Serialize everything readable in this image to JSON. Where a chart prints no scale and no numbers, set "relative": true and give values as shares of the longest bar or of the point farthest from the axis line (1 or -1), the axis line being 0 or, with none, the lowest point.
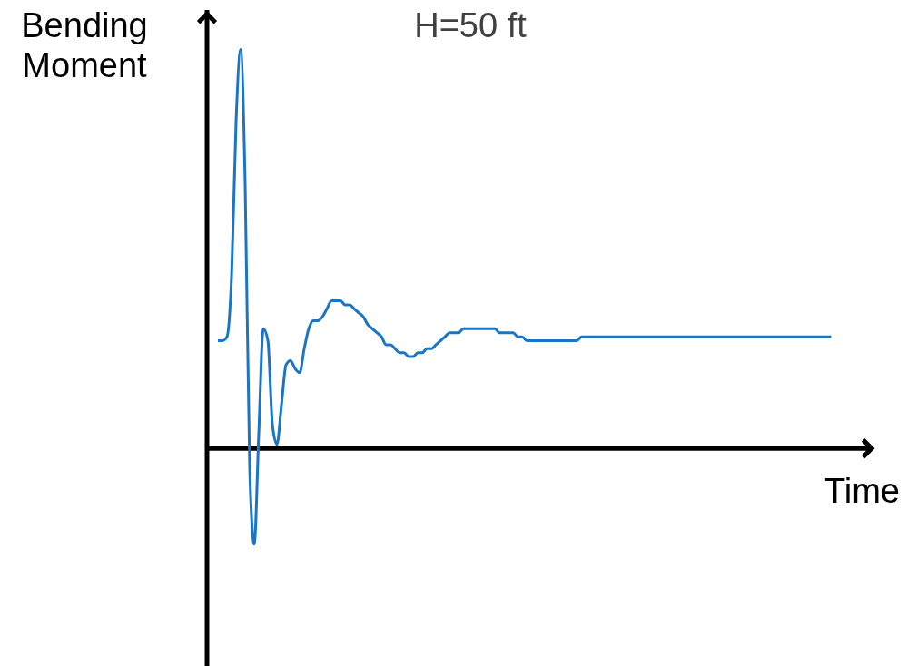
{
  "chart_data": {
    "type": "line",
    "title": "H=50 ft",
    "xlabel": "Time",
    "ylabel": "Bending Moment",
    "relative": true,
    "categories": [
      null,
      null,
      null,
      null,
      null,
      null,
      null,
      null,
      null,
      null,
      null,
      null,
      null,
      null,
      null,
      null,
      null,
      null,
      null,
      null,
      null,
      null,
      null,
      null,
      null,
      null,
      null,
      null,
      null,
      null,
      null,
      null,
      null,
      null,
      null,
      null,
      null,
      null,
      null,
      null,
      null,
      null,
      null,
      null,
      null,
      null,
      null,
      null,
      null,
      null,
      null,
      null,
      null,
      null,
      null,
      null,
      null,
      null,
      null,
      null,
      null,
      null,
      null,
      null,
      null,
      null,
      null,
      null,
      null,
      null,
      null,
      null,
      null,
      null,
      null,
      null,
      null,
      null,
      null,
      null,
      null,
      null,
      null,
      null,
      null,
      null,
      null,
      null,
      null,
      null,
      null,
      null,
      null,
      null,
      null,
      null,
      null,
      null,
      null,
      null,
      null,
      null,
      null,
      null,
      null,
      null,
      null,
      null,
      null,
      null,
      null,
      null,
      null,
      null,
      null,
      null,
      null,
      null,
      null,
      null,
      null,
      null,
      null,
      null,
      null,
      null,
      null,
      null,
      null,
      null,
      null,
      null,
      null,
      null,
      null,
      null
    ],
    "series": [
      {
        "color": "#1a75c4",
        "values": [
          0.27,
          0.27,
          0.28,
          0.43,
          0.82,
          1.0,
          0.66,
          -0.05,
          -0.24,
          0.04,
          0.3,
          0.27,
          0.06,
          0.01,
          0.11,
          0.21,
          0.22,
          0.2,
          0.19,
          0.25,
          0.3,
          0.32,
          0.32,
          0.33,
          0.35,
          0.37,
          0.37,
          0.37,
          0.36,
          0.36,
          0.35,
          0.34,
          0.33,
          0.31,
          0.3,
          0.29,
          0.28,
          0.26,
          0.26,
          0.25,
          0.24,
          0.24,
          0.23,
          0.23,
          0.24,
          0.24,
          0.25,
          0.25,
          0.26,
          0.27,
          0.28,
          0.29,
          0.29,
          0.29,
          0.3,
          0.3,
          0.3,
          0.3,
          0.3,
          0.3,
          0.3,
          0.3,
          0.29,
          0.29,
          0.29,
          0.29,
          0.28,
          0.28,
          0.27,
          0.27,
          0.27,
          0.27,
          0.27,
          0.27,
          0.27,
          0.27,
          0.27,
          0.27,
          0.27,
          0.27,
          0.28,
          0.28,
          0.28,
          0.28,
          0.28,
          0.28,
          0.28,
          0.28,
          0.28,
          0.28,
          0.28,
          0.28,
          0.28,
          0.28,
          0.28,
          0.28,
          0.28,
          0.28,
          0.28,
          0.28,
          0.28,
          0.28,
          0.28,
          0.28,
          0.28,
          0.28,
          0.28,
          0.28,
          0.28,
          0.28,
          0.28,
          0.28,
          0.28,
          0.28,
          0.28,
          0.28,
          0.28,
          0.28,
          0.28,
          0.28,
          0.28,
          0.28,
          0.28,
          0.28,
          0.28,
          0.28,
          0.28,
          0.28,
          0.28,
          0.28,
          0.28,
          0.28,
          0.28,
          0.28,
          0.28,
          0.28
        ]
      }
    ]
  }
}
